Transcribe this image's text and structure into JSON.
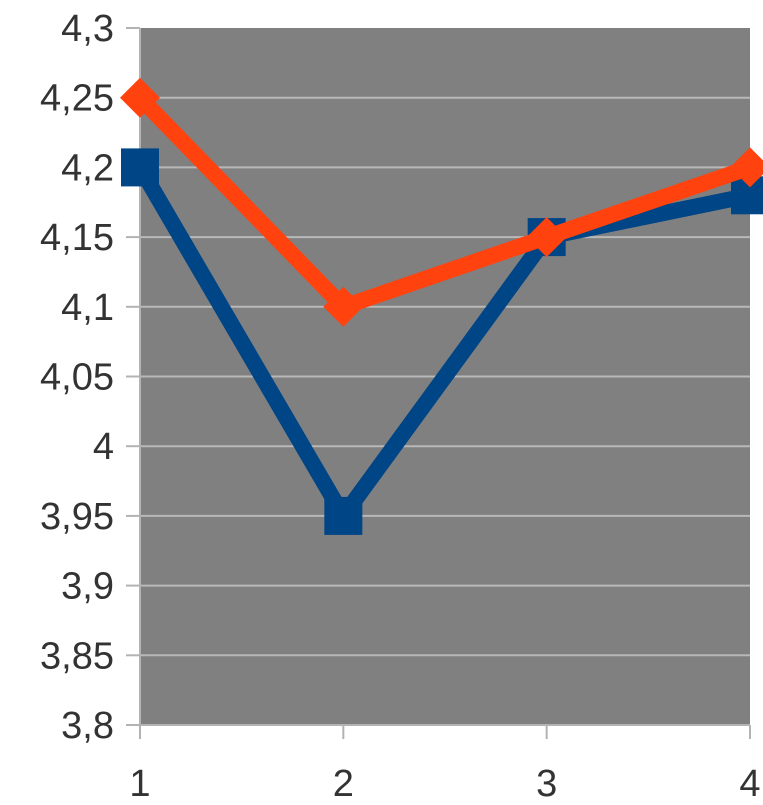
{
  "chart_data": {
    "type": "line",
    "x": [
      1,
      2,
      3,
      4
    ],
    "x_tick_labels": [
      "1",
      "2",
      "3",
      "4"
    ],
    "ylim": [
      3.8,
      4.3
    ],
    "y_ticks": [
      3.8,
      3.85,
      3.9,
      3.95,
      4.0,
      4.05,
      4.1,
      4.15,
      4.2,
      4.25,
      4.3
    ],
    "y_tick_labels": [
      "3,8",
      "3,85",
      "3,9",
      "3,95",
      "4",
      "4,05",
      "4,1",
      "4,15",
      "4,2",
      "4,25",
      "4,3"
    ],
    "grid": true,
    "plot_background": "#808080",
    "grid_color": "#b8b8b8",
    "series": [
      {
        "color": "#004586",
        "marker": "square",
        "values": [
          4.2,
          3.95,
          4.15,
          4.18
        ]
      },
      {
        "color": "#ff420e",
        "marker": "diamond",
        "values": [
          4.25,
          4.1,
          4.15,
          4.2
        ]
      }
    ]
  }
}
